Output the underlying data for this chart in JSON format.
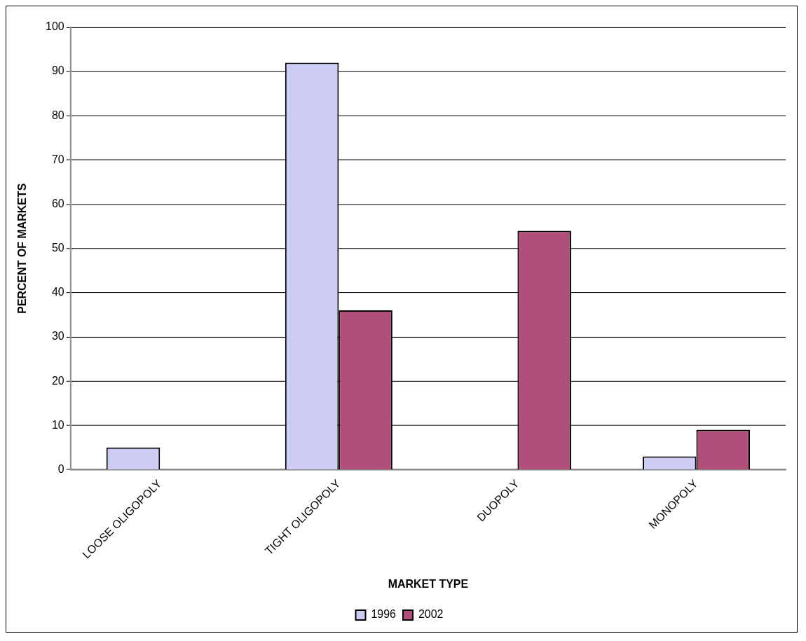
{
  "chart_data": {
    "type": "bar",
    "xlabel": "MARKET TYPE",
    "ylabel": "PERCENT OF MARKETS",
    "categories": [
      "LOOSE OLIGOPOLY",
      "TIGHT OLIGOPOLY",
      "DUOPOLY",
      "MONOPOLY"
    ],
    "series": [
      {
        "name": "1996",
        "color": "#ccccf5",
        "values": [
          5,
          92,
          null,
          3
        ]
      },
      {
        "name": "2002",
        "color": "#b0507a",
        "values": [
          null,
          36,
          54,
          9
        ]
      }
    ],
    "ylim": [
      0,
      100
    ],
    "yticks": [
      0,
      10,
      20,
      30,
      40,
      50,
      60,
      70,
      80,
      90,
      100
    ],
    "grid": "y",
    "legend": "bottom"
  }
}
